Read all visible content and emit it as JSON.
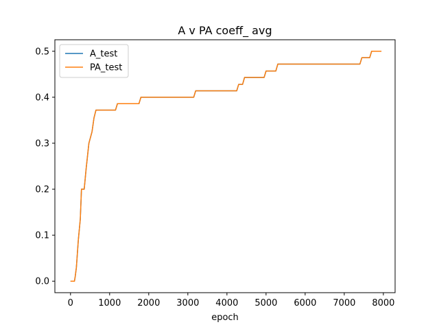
{
  "chart_data": {
    "type": "line",
    "title": "A v PA coeff_ avg",
    "xlabel": "epoch",
    "ylabel": "",
    "xlim": [
      -400,
      8300
    ],
    "ylim": [
      -0.025,
      0.525
    ],
    "xticks": [
      0,
      1000,
      2000,
      3000,
      4000,
      5000,
      6000,
      7000,
      8000
    ],
    "yticks": [
      0.0,
      0.1,
      0.2,
      0.3,
      0.4,
      0.5
    ],
    "ytick_labels": [
      "0.0",
      "0.1",
      "0.2",
      "0.3",
      "0.4",
      "0.5"
    ],
    "grid": false,
    "legend_position": "top-left",
    "series": [
      {
        "name": "A_test",
        "color": "#1f77b4",
        "x": [
          0,
          100,
          120,
          150,
          200,
          250,
          280,
          350,
          400,
          470,
          550,
          600,
          650,
          700,
          1150,
          1200,
          1750,
          1800,
          3150,
          3200,
          4250,
          4300,
          4400,
          4450,
          4950,
          5000,
          5250,
          5300,
          7400,
          7450,
          7650,
          7700,
          7950
        ],
        "y": [
          0.0,
          0.0,
          0.01,
          0.03,
          0.09,
          0.135,
          0.2,
          0.2,
          0.245,
          0.3,
          0.325,
          0.355,
          0.372,
          0.372,
          0.372,
          0.386,
          0.386,
          0.4,
          0.4,
          0.414,
          0.414,
          0.428,
          0.428,
          0.443,
          0.443,
          0.457,
          0.457,
          0.472,
          0.472,
          0.486,
          0.486,
          0.5,
          0.5
        ]
      },
      {
        "name": "PA_test",
        "color": "#ff7f0e",
        "x": [
          0,
          100,
          120,
          150,
          200,
          250,
          280,
          350,
          400,
          470,
          550,
          600,
          650,
          700,
          1150,
          1200,
          1750,
          1800,
          3150,
          3200,
          4250,
          4300,
          4400,
          4450,
          4950,
          5000,
          5250,
          5300,
          7400,
          7450,
          7650,
          7700,
          7950
        ],
        "y": [
          0.0,
          0.0,
          0.01,
          0.03,
          0.09,
          0.135,
          0.2,
          0.2,
          0.245,
          0.3,
          0.325,
          0.355,
          0.372,
          0.372,
          0.372,
          0.386,
          0.386,
          0.4,
          0.4,
          0.414,
          0.414,
          0.428,
          0.428,
          0.443,
          0.443,
          0.457,
          0.457,
          0.472,
          0.472,
          0.486,
          0.486,
          0.5,
          0.5
        ]
      }
    ]
  }
}
